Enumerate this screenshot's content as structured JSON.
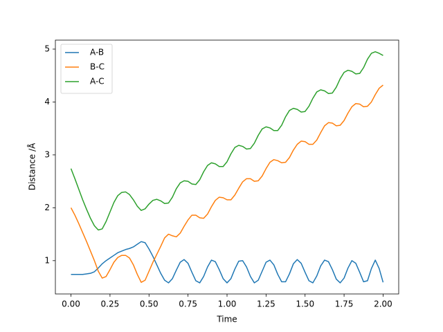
{
  "chart_data": {
    "type": "line",
    "x_label": "Time",
    "y_label": "Distance /Å",
    "x": [
      0,
      0.025,
      0.05,
      0.075,
      0.1,
      0.125,
      0.15,
      0.175,
      0.2,
      0.225,
      0.25,
      0.275,
      0.3,
      0.325,
      0.35,
      0.375,
      0.4,
      0.425,
      0.45,
      0.475,
      0.5,
      0.525,
      0.55,
      0.575,
      0.6,
      0.625,
      0.65,
      0.675,
      0.7,
      0.725,
      0.75,
      0.775,
      0.8,
      0.825,
      0.85,
      0.875,
      0.9,
      0.925,
      0.95,
      0.975,
      1.0,
      1.025,
      1.05,
      1.075,
      1.1,
      1.125,
      1.15,
      1.175,
      1.2,
      1.225,
      1.25,
      1.275,
      1.3,
      1.325,
      1.35,
      1.375,
      1.4,
      1.425,
      1.45,
      1.475,
      1.5,
      1.525,
      1.55,
      1.575,
      1.6,
      1.625,
      1.65,
      1.675,
      1.7,
      1.725,
      1.75,
      1.775,
      1.8,
      1.825,
      1.85,
      1.875,
      1.9,
      1.925,
      1.95,
      1.975,
      2.0
    ],
    "series": [
      {
        "name": "A-B",
        "color": "#1f77b4",
        "values": [
          0.74,
          0.74,
          0.74,
          0.74,
          0.75,
          0.76,
          0.79,
          0.86,
          0.94,
          1.0,
          1.05,
          1.1,
          1.15,
          1.18,
          1.21,
          1.23,
          1.26,
          1.31,
          1.36,
          1.34,
          1.22,
          1.08,
          0.92,
          0.76,
          0.63,
          0.58,
          0.66,
          0.82,
          0.97,
          1.02,
          0.95,
          0.78,
          0.62,
          0.58,
          0.7,
          0.88,
          1.01,
          0.98,
          0.83,
          0.66,
          0.58,
          0.66,
          0.84,
          0.99,
          1.0,
          0.88,
          0.7,
          0.58,
          0.63,
          0.8,
          0.97,
          1.01,
          0.92,
          0.74,
          0.6,
          0.6,
          0.75,
          0.94,
          1.02,
          0.95,
          0.78,
          0.62,
          0.58,
          0.71,
          0.9,
          1.01,
          0.98,
          0.83,
          0.65,
          0.58,
          0.67,
          0.86,
          1.0,
          0.95,
          0.78,
          0.6,
          0.62,
          0.85,
          1.01,
          0.85,
          0.59
        ]
      },
      {
        "name": "B-C",
        "color": "#ff7f0e",
        "values": [
          2.0,
          1.86,
          1.7,
          1.53,
          1.36,
          1.18,
          1.0,
          0.8,
          0.67,
          0.7,
          0.83,
          0.97,
          1.06,
          1.1,
          1.1,
          1.05,
          0.92,
          0.74,
          0.59,
          0.63,
          0.8,
          0.97,
          1.12,
          1.27,
          1.43,
          1.5,
          1.47,
          1.45,
          1.52,
          1.65,
          1.77,
          1.86,
          1.86,
          1.81,
          1.8,
          1.88,
          2.02,
          2.14,
          2.2,
          2.19,
          2.15,
          2.15,
          2.24,
          2.37,
          2.49,
          2.55,
          2.55,
          2.5,
          2.51,
          2.6,
          2.74,
          2.86,
          2.91,
          2.89,
          2.85,
          2.86,
          2.95,
          3.09,
          3.2,
          3.26,
          3.25,
          3.2,
          3.2,
          3.28,
          3.42,
          3.55,
          3.61,
          3.6,
          3.55,
          3.56,
          3.65,
          3.79,
          3.91,
          3.97,
          3.96,
          3.91,
          3.92,
          4.0,
          4.14,
          4.26,
          4.32
        ]
      },
      {
        "name": "A-C",
        "color": "#2ca02c",
        "values": [
          2.74,
          2.55,
          2.35,
          2.15,
          1.97,
          1.8,
          1.66,
          1.58,
          1.6,
          1.74,
          1.92,
          2.1,
          2.23,
          2.29,
          2.3,
          2.25,
          2.15,
          2.03,
          1.95,
          1.98,
          2.07,
          2.14,
          2.16,
          2.13,
          2.08,
          2.09,
          2.2,
          2.36,
          2.47,
          2.51,
          2.5,
          2.45,
          2.44,
          2.53,
          2.68,
          2.8,
          2.85,
          2.83,
          2.78,
          2.78,
          2.87,
          3.02,
          3.14,
          3.18,
          3.16,
          3.11,
          3.12,
          3.22,
          3.37,
          3.49,
          3.53,
          3.51,
          3.46,
          3.46,
          3.56,
          3.72,
          3.84,
          3.88,
          3.86,
          3.81,
          3.82,
          3.92,
          4.07,
          4.19,
          4.23,
          4.21,
          4.16,
          4.17,
          4.28,
          4.44,
          4.56,
          4.6,
          4.58,
          4.53,
          4.54,
          4.65,
          4.81,
          4.92,
          4.95,
          4.92,
          4.88
        ]
      }
    ],
    "xlim": [
      -0.1,
      2.1
    ],
    "ylim": [
      0.37,
      5.17
    ],
    "xticks": [
      {
        "value": 0,
        "label": "0.00"
      },
      {
        "value": 0.25,
        "label": "0.25"
      },
      {
        "value": 0.5,
        "label": "0.50"
      },
      {
        "value": 0.75,
        "label": "0.75"
      },
      {
        "value": 1.0,
        "label": "1.00"
      },
      {
        "value": 1.25,
        "label": "1.25"
      },
      {
        "value": 1.5,
        "label": "1.50"
      },
      {
        "value": 1.75,
        "label": "1.75"
      },
      {
        "value": 2.0,
        "label": "2.00"
      }
    ],
    "yticks": [
      1,
      2,
      3,
      4,
      5
    ],
    "legend": "upper-left"
  }
}
